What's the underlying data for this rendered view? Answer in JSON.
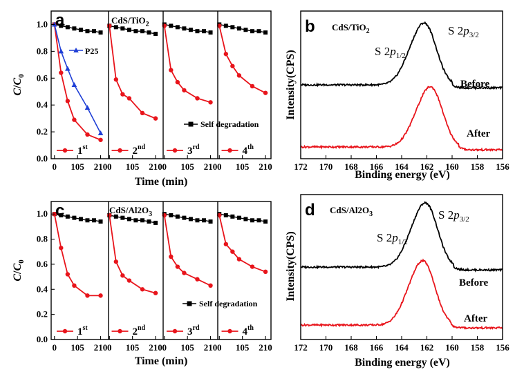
{
  "chart_data": [
    {
      "panel": "a",
      "type": "line",
      "material": "CdS/TiO2",
      "ylabel": "C/C0",
      "xlabel": "Time (min)",
      "ylim": [
        0.0,
        1.1
      ],
      "yticks": [
        "0.0",
        "0.2",
        "0.4",
        "0.6",
        "0.8",
        "1.0"
      ],
      "xlim": [
        -15,
        235
      ],
      "xticks": [
        "0",
        "105",
        "210"
      ],
      "legend_self": "Self degradation",
      "p25": {
        "name": "P25",
        "x": [
          0,
          30,
          60,
          90,
          150,
          210
        ],
        "y": [
          1.0,
          0.8,
          0.67,
          0.55,
          0.38,
          0.19
        ]
      },
      "runs": [
        {
          "label": "1",
          "suffix": "st",
          "photo": {
            "x": [
              0,
              30,
              60,
              90,
              150,
              210
            ],
            "y": [
              1.0,
              0.64,
              0.43,
              0.29,
              0.18,
              0.14
            ]
          },
          "self": {
            "x": [
              0,
              30,
              60,
              90,
              120,
              150,
              180,
              210
            ],
            "y": [
              1.0,
              0.99,
              0.98,
              0.97,
              0.96,
              0.95,
              0.95,
              0.94
            ]
          }
        },
        {
          "label": "2",
          "suffix": "nd",
          "photo": {
            "x": [
              0,
              30,
              60,
              90,
              150,
              210
            ],
            "y": [
              0.99,
              0.59,
              0.48,
              0.45,
              0.34,
              0.3
            ]
          },
          "self": {
            "x": [
              0,
              30,
              60,
              90,
              120,
              150,
              180,
              210
            ],
            "y": [
              0.99,
              0.98,
              0.97,
              0.96,
              0.95,
              0.95,
              0.94,
              0.93
            ]
          }
        },
        {
          "label": "3",
          "suffix": "rd",
          "photo": {
            "x": [
              0,
              30,
              60,
              90,
              150,
              210
            ],
            "y": [
              0.99,
              0.66,
              0.57,
              0.51,
              0.45,
              0.42
            ]
          },
          "self": {
            "x": [
              0,
              30,
              60,
              90,
              120,
              150,
              180,
              210
            ],
            "y": [
              1.0,
              0.99,
              0.98,
              0.97,
              0.96,
              0.95,
              0.95,
              0.94
            ]
          }
        },
        {
          "label": "4",
          "suffix": "th",
          "photo": {
            "x": [
              0,
              30,
              60,
              90,
              150,
              210
            ],
            "y": [
              0.99,
              0.78,
              0.69,
              0.62,
              0.54,
              0.49
            ]
          },
          "self": {
            "x": [
              0,
              30,
              60,
              90,
              120,
              150,
              180,
              210
            ],
            "y": [
              1.0,
              0.99,
              0.98,
              0.97,
              0.96,
              0.95,
              0.95,
              0.94
            ]
          }
        }
      ]
    },
    {
      "panel": "b",
      "type": "line",
      "material": "CdS/TiO2",
      "ylabel": "Intensity(CPS)",
      "xlabel": "Binding energy (eV)",
      "xlim": [
        172,
        156
      ],
      "xticks": [
        "172",
        "170",
        "168",
        "166",
        "164",
        "162",
        "160",
        "158",
        "156"
      ],
      "peaks": [
        "S 2p1/2",
        "S 2p3/2"
      ],
      "series": [
        {
          "name": "Before",
          "color": "#000000",
          "baseline": 0.5,
          "amp": 0.35,
          "center": 162.0
        },
        {
          "name": "After",
          "color": "#e8141b",
          "baseline": 0.08,
          "amp": 0.34,
          "center": 161.5
        }
      ]
    },
    {
      "panel": "c",
      "type": "line",
      "material": "CdS/Al2O3",
      "ylabel": "C/C0",
      "xlabel": "Time (min)",
      "ylim": [
        0.0,
        1.1
      ],
      "yticks": [
        "0.0",
        "0.2",
        "0.4",
        "0.6",
        "0.8",
        "1.0"
      ],
      "xlim": [
        -15,
        235
      ],
      "xticks": [
        "0",
        "105",
        "210"
      ],
      "legend_self": "Self degradation",
      "runs": [
        {
          "label": "1",
          "suffix": "st",
          "photo": {
            "x": [
              0,
              30,
              60,
              90,
              150,
              210
            ],
            "y": [
              1.0,
              0.73,
              0.52,
              0.43,
              0.35,
              0.35
            ]
          },
          "self": {
            "x": [
              0,
              30,
              60,
              90,
              120,
              150,
              180,
              210
            ],
            "y": [
              1.0,
              0.99,
              0.98,
              0.97,
              0.96,
              0.95,
              0.95,
              0.94
            ]
          }
        },
        {
          "label": "2",
          "suffix": "nd",
          "photo": {
            "x": [
              0,
              30,
              60,
              90,
              150,
              210
            ],
            "y": [
              0.99,
              0.62,
              0.51,
              0.47,
              0.4,
              0.37
            ]
          },
          "self": {
            "x": [
              0,
              30,
              60,
              90,
              120,
              150,
              180,
              210
            ],
            "y": [
              0.99,
              0.98,
              0.97,
              0.96,
              0.95,
              0.95,
              0.94,
              0.93
            ]
          }
        },
        {
          "label": "3",
          "suffix": "rd",
          "photo": {
            "x": [
              0,
              30,
              60,
              90,
              150,
              210
            ],
            "y": [
              0.99,
              0.66,
              0.58,
              0.53,
              0.48,
              0.43
            ]
          },
          "self": {
            "x": [
              0,
              30,
              60,
              90,
              120,
              150,
              180,
              210
            ],
            "y": [
              1.0,
              0.99,
              0.98,
              0.97,
              0.96,
              0.95,
              0.95,
              0.94
            ]
          }
        },
        {
          "label": "4",
          "suffix": "th",
          "photo": {
            "x": [
              0,
              30,
              60,
              90,
              150,
              210
            ],
            "y": [
              0.99,
              0.76,
              0.7,
              0.64,
              0.58,
              0.54
            ]
          },
          "self": {
            "x": [
              0,
              30,
              60,
              90,
              120,
              150,
              180,
              210
            ],
            "y": [
              1.0,
              0.99,
              0.98,
              0.97,
              0.96,
              0.95,
              0.95,
              0.94
            ]
          }
        }
      ]
    },
    {
      "panel": "d",
      "type": "line",
      "material": "CdS/Al2O3",
      "ylabel": "Intensity(CPS)",
      "xlabel": "Binding energy (eV)",
      "xlim": [
        172,
        156
      ],
      "xticks": [
        "172",
        "170",
        "168",
        "166",
        "164",
        "162",
        "160",
        "158",
        "156"
      ],
      "peaks": [
        "S 2p1/2",
        "S 2p3/2"
      ],
      "series": [
        {
          "name": "Before",
          "color": "#000000",
          "baseline": 0.5,
          "amp": 0.37,
          "center": 161.9
        },
        {
          "name": "After",
          "color": "#e8141b",
          "baseline": 0.1,
          "amp": 0.37,
          "center": 162.1
        }
      ]
    }
  ],
  "colors": {
    "photo": "#e8141b",
    "p25": "#1f3fd6",
    "self": "#000000"
  }
}
